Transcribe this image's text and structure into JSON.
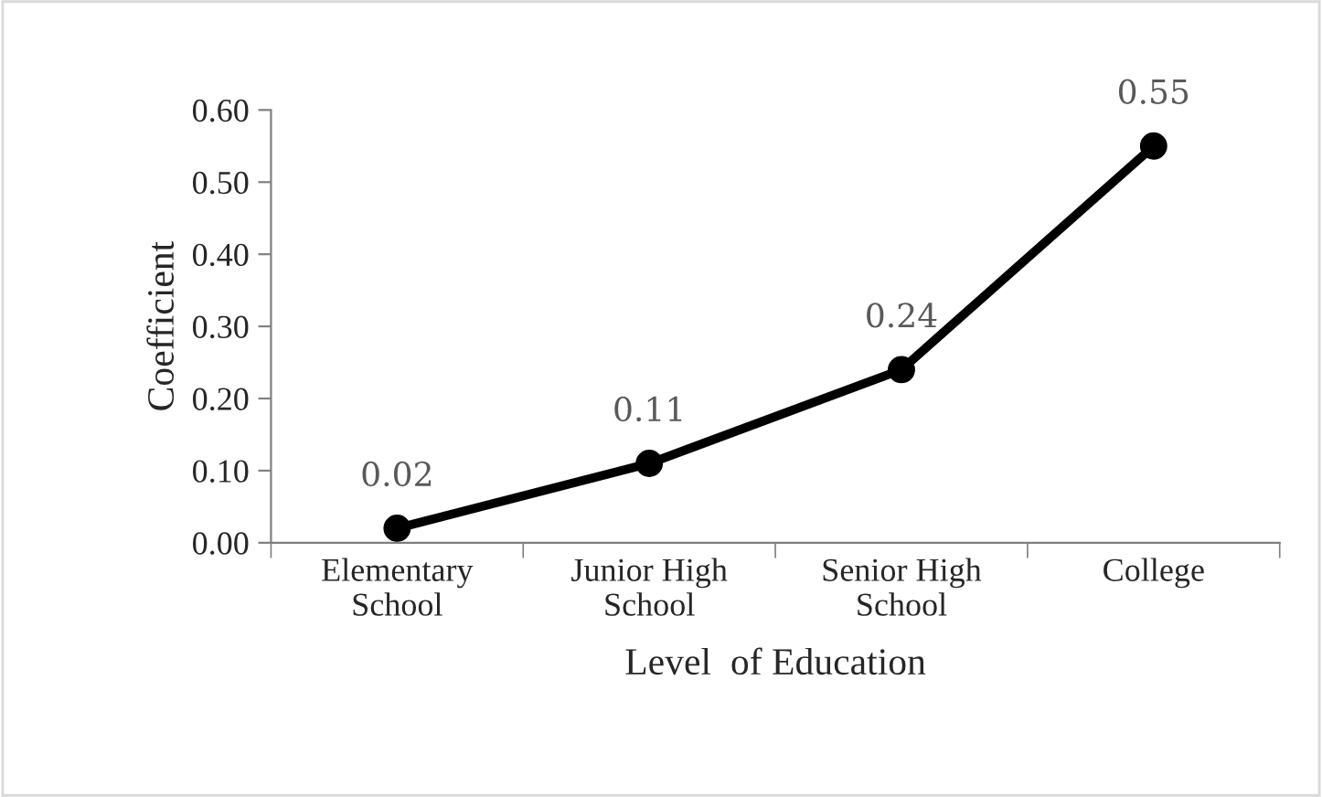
{
  "chart_data": {
    "type": "line",
    "xlabel": "Level  of Education",
    "ylabel": "Coefficient",
    "categories": [
      "Elementary\nSchool",
      "Junior High\nSchool",
      "Senior High\nSchool",
      "College"
    ],
    "series": [
      {
        "color": "#000000",
        "values": [
          0.02,
          0.11,
          0.24,
          0.55
        ]
      }
    ],
    "ylim": [
      0,
      0.6
    ],
    "yticks": [
      {
        "value": 0,
        "label": "0.00"
      },
      {
        "value": 0.1,
        "label": "0.10"
      },
      {
        "value": 0.2,
        "label": "0.20"
      },
      {
        "value": 0.3,
        "label": "0.30"
      },
      {
        "value": 0.4,
        "label": "0.40"
      },
      {
        "value": 0.5,
        "label": "0.50"
      },
      {
        "value": 0.6,
        "label": "0.60"
      }
    ],
    "marker": "circle",
    "line_style": "solid",
    "grid": false,
    "legend": false,
    "data_labels": true
  }
}
